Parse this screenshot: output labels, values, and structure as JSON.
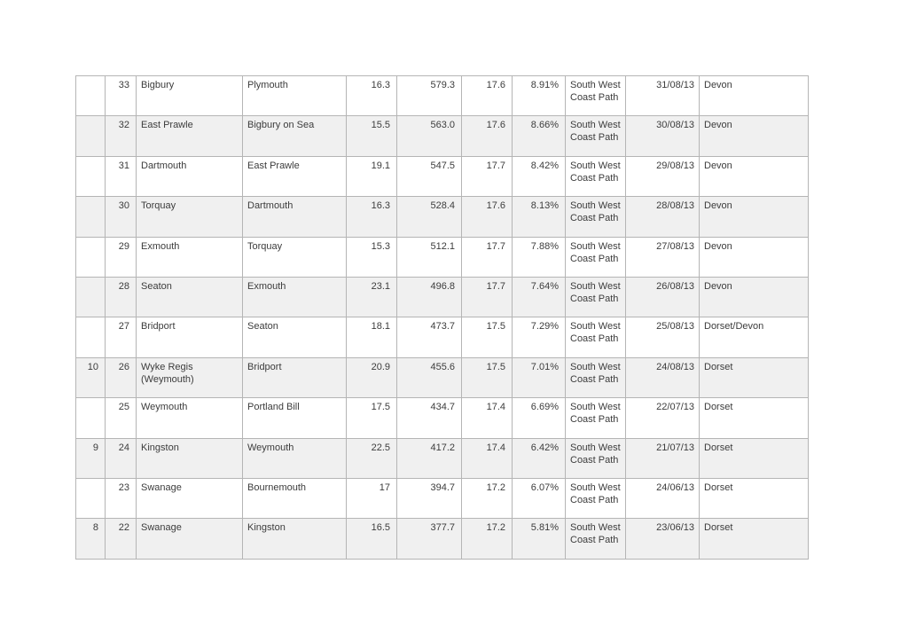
{
  "page": {
    "background_color": "#ffffff"
  },
  "table": {
    "border_color": "#b5b5b5",
    "shaded_row_color": "#f0f0f0",
    "text_color": "#3c3c3c",
    "columns": [
      {
        "key": "marker",
        "name": "cell-week-marker",
        "align": "right"
      },
      {
        "key": "stage",
        "name": "cell-stage-number",
        "align": "right"
      },
      {
        "key": "to",
        "name": "cell-destination",
        "align": "left"
      },
      {
        "key": "from",
        "name": "cell-start-point",
        "align": "left"
      },
      {
        "key": "distance",
        "name": "cell-distance",
        "align": "right"
      },
      {
        "key": "cumulative",
        "name": "cell-cumulative-distance",
        "align": "right"
      },
      {
        "key": "average",
        "name": "cell-average-distance",
        "align": "right"
      },
      {
        "key": "percent",
        "name": "cell-percent-complete",
        "align": "right"
      },
      {
        "key": "trail",
        "name": "cell-trail-name",
        "align": "left"
      },
      {
        "key": "date",
        "name": "cell-date",
        "align": "date"
      },
      {
        "key": "county",
        "name": "cell-county",
        "align": "left"
      }
    ],
    "rows": [
      {
        "marker": "",
        "stage": "33",
        "to": "Bigbury",
        "from": "Plymouth",
        "distance": "16.3",
        "cumulative": "579.3",
        "average": "17.6",
        "percent": "8.91%",
        "trail": "South West Coast Path",
        "date": "31/08/13",
        "county": "Devon"
      },
      {
        "marker": "",
        "stage": "32",
        "to": "East Prawle",
        "from": "Bigbury on Sea",
        "distance": "15.5",
        "cumulative": "563.0",
        "average": "17.6",
        "percent": "8.66%",
        "trail": "South West Coast Path",
        "date": "30/08/13",
        "county": "Devon"
      },
      {
        "marker": "",
        "stage": "31",
        "to": "Dartmouth",
        "from": "East Prawle",
        "distance": "19.1",
        "cumulative": "547.5",
        "average": "17.7",
        "percent": "8.42%",
        "trail": "South West Coast Path",
        "date": "29/08/13",
        "county": "Devon"
      },
      {
        "marker": "",
        "stage": "30",
        "to": "Torquay",
        "from": "Dartmouth",
        "distance": "16.3",
        "cumulative": "528.4",
        "average": "17.6",
        "percent": "8.13%",
        "trail": "South West Coast Path",
        "date": "28/08/13",
        "county": "Devon"
      },
      {
        "marker": "",
        "stage": "29",
        "to": "Exmouth",
        "from": "Torquay",
        "distance": "15.3",
        "cumulative": "512.1",
        "average": "17.7",
        "percent": "7.88%",
        "trail": "South West Coast Path",
        "date": "27/08/13",
        "county": "Devon"
      },
      {
        "marker": "",
        "stage": "28",
        "to": "Seaton",
        "from": "Exmouth",
        "distance": "23.1",
        "cumulative": "496.8",
        "average": "17.7",
        "percent": "7.64%",
        "trail": "South West Coast Path",
        "date": "26/08/13",
        "county": "Devon"
      },
      {
        "marker": "",
        "stage": "27",
        "to": "Bridport",
        "from": "Seaton",
        "distance": "18.1",
        "cumulative": "473.7",
        "average": "17.5",
        "percent": "7.29%",
        "trail": "South West Coast Path",
        "date": "25/08/13",
        "county": "Dorset/Devon"
      },
      {
        "marker": "10",
        "stage": "26",
        "to": "Wyke Regis (Weymouth)",
        "from": "Bridport",
        "distance": "20.9",
        "cumulative": "455.6",
        "average": "17.5",
        "percent": "7.01%",
        "trail": "South West Coast Path",
        "date": "24/08/13",
        "county": "Dorset"
      },
      {
        "marker": "",
        "stage": "25",
        "to": "Weymouth",
        "from": "Portland Bill",
        "distance": "17.5",
        "cumulative": "434.7",
        "average": "17.4",
        "percent": "6.69%",
        "trail": "South West Coast Path",
        "date": "22/07/13",
        "county": "Dorset"
      },
      {
        "marker": "9",
        "stage": "24",
        "to": "Kingston",
        "from": "Weymouth",
        "distance": "22.5",
        "cumulative": "417.2",
        "average": "17.4",
        "percent": "6.42%",
        "trail": "South West Coast Path",
        "date": "21/07/13",
        "county": "Dorset"
      },
      {
        "marker": "",
        "stage": "23",
        "to": "Swanage",
        "from": "Bournemouth",
        "distance": "17",
        "cumulative": "394.7",
        "average": "17.2",
        "percent": "6.07%",
        "trail": "South West Coast Path",
        "date": "24/06/13",
        "county": "Dorset"
      },
      {
        "marker": "8",
        "stage": "22",
        "to": "Swanage",
        "from": "Kingston",
        "distance": "16.5",
        "cumulative": "377.7",
        "average": "17.2",
        "percent": "5.81%",
        "trail": "South West Coast Path",
        "date": "23/06/13",
        "county": "Dorset"
      }
    ]
  }
}
